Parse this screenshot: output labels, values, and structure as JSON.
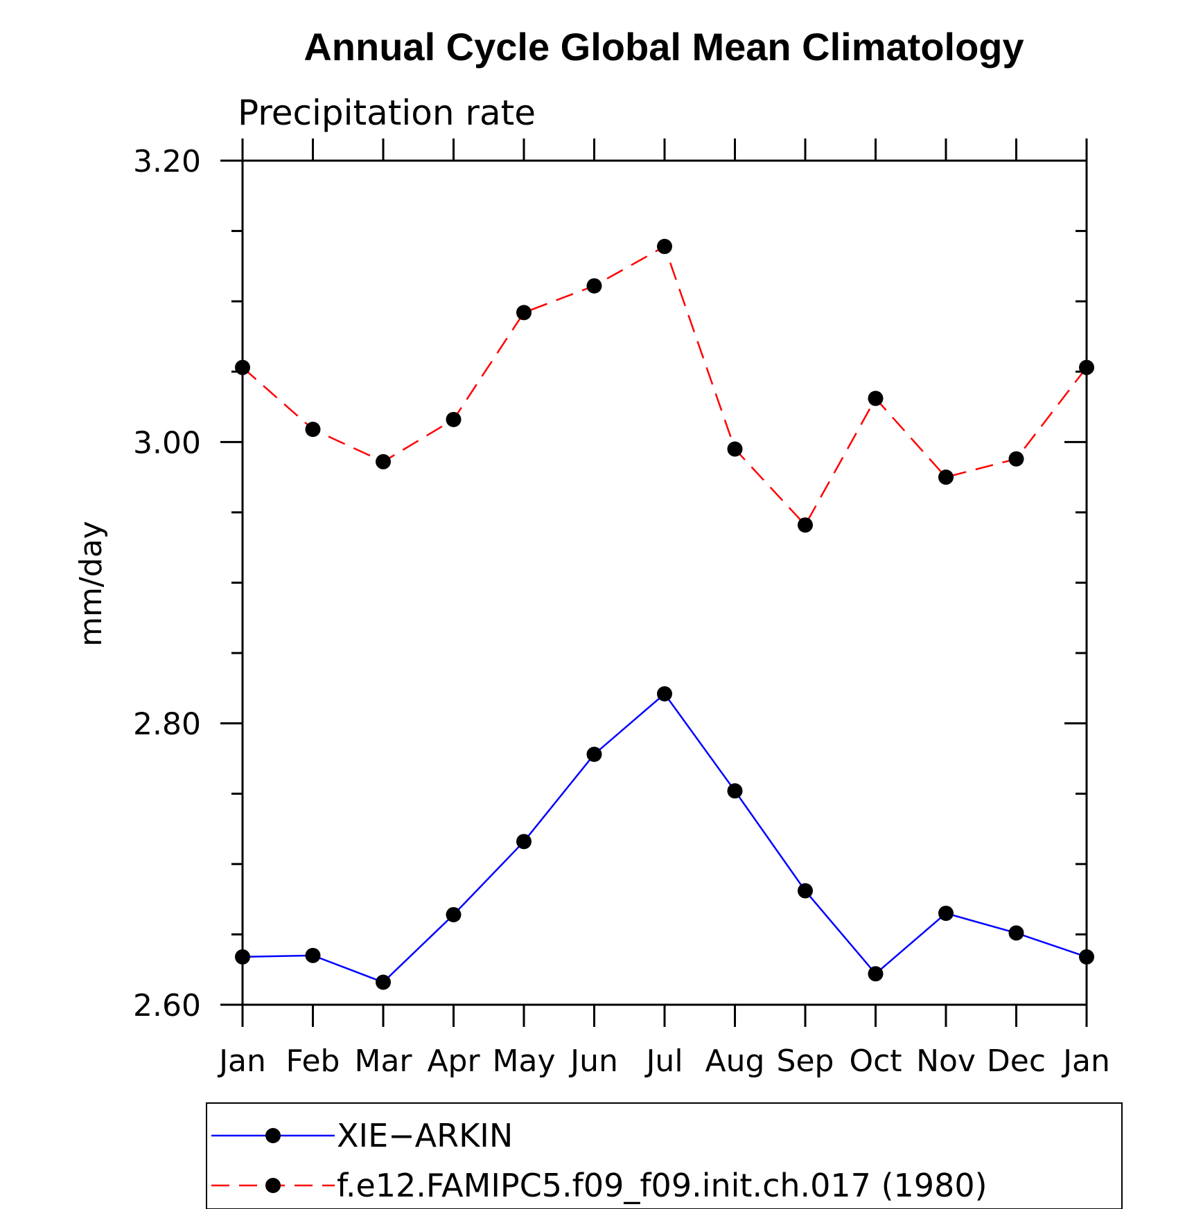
{
  "chart_data": {
    "type": "line",
    "title": "Annual Cycle Global Mean Climatology",
    "subtitle": "Precipitation rate",
    "ylabel": "mm/day",
    "xlabel": "",
    "categories": [
      "Jan",
      "Feb",
      "Mar",
      "Apr",
      "May",
      "Jun",
      "Jul",
      "Aug",
      "Sep",
      "Oct",
      "Nov",
      "Dec",
      "Jan"
    ],
    "ylim": [
      2.6,
      3.2
    ],
    "yticks": [
      "2.60",
      "2.80",
      "3.00",
      "3.20"
    ],
    "yminor_step": 0.05,
    "grid": false,
    "legend_position": "bottom",
    "series": [
      {
        "name": "XIE−ARKIN",
        "color": "#0000ff",
        "dash": "solid",
        "marker": "filled-circle",
        "values": [
          2.634,
          2.635,
          2.616,
          2.664,
          2.716,
          2.778,
          2.821,
          2.752,
          2.681,
          2.622,
          2.665,
          2.651,
          2.634
        ]
      },
      {
        "name": "f.e12.FAMIPC5.f09_f09.init.ch.017 (1980)",
        "color": "#ff0000",
        "dash": "dashed",
        "marker": "filled-circle",
        "values": [
          3.053,
          3.009,
          2.986,
          3.016,
          3.092,
          3.111,
          3.139,
          2.995,
          2.941,
          3.031,
          2.975,
          2.988,
          3.053
        ]
      }
    ]
  }
}
